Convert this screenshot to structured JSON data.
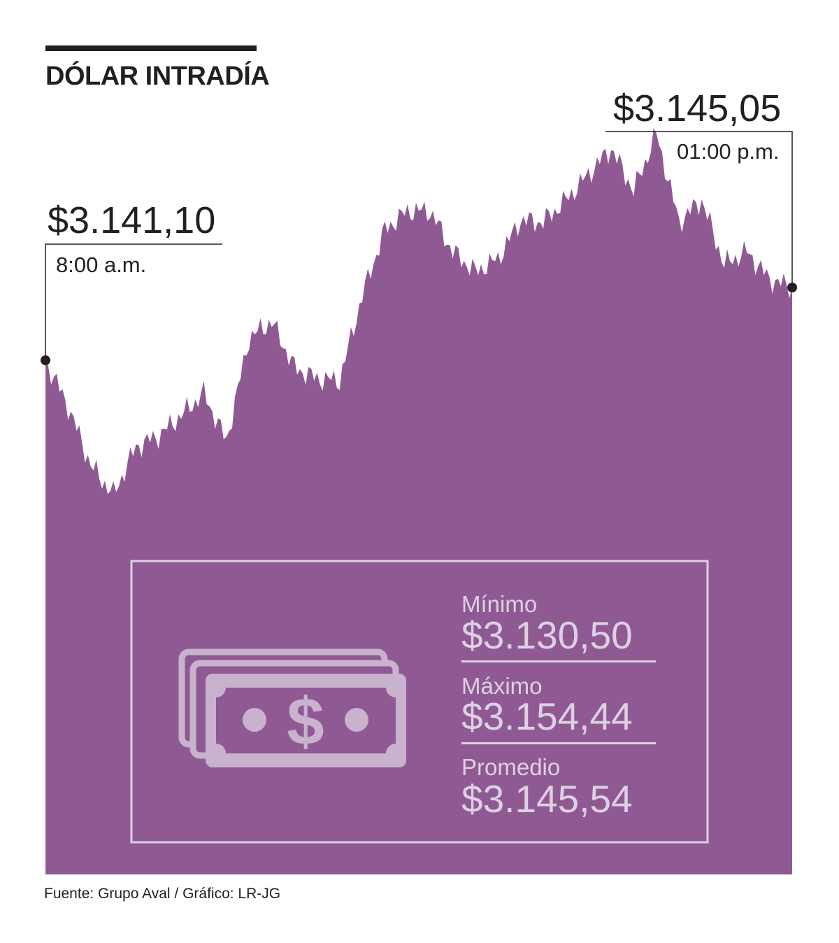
{
  "title": "DÓLAR INTRADÍA",
  "source": "Fuente: Grupo Aval / Gráfico: LR-JG",
  "colors": {
    "area": "#8f5a93",
    "text": "#231f20",
    "inset_text": "#ddd0e2"
  },
  "open": {
    "value": "$3.141,10",
    "time": "8:00 a.m."
  },
  "close": {
    "value": "$3.145,05",
    "time": "01:00 p.m."
  },
  "stats": [
    {
      "label": "Mínimo",
      "value": "$3.130,50"
    },
    {
      "label": "Máximo",
      "value": "$3.154,44"
    },
    {
      "label": "Promedio",
      "value": "$3.145,54"
    }
  ],
  "icon": "banknotes-dollar-icon",
  "chart_data": {
    "type": "area",
    "title": "DÓLAR INTRADÍA",
    "xlabel": "",
    "ylabel": "",
    "x_range": [
      "8:00 a.m.",
      "01:00 p.m."
    ],
    "ylim": [
      3130.5,
      3154.44
    ],
    "grid": false,
    "series": [
      {
        "x": [
          "8:00",
          "8:05",
          "8:10",
          "8:15",
          "8:20",
          "8:25",
          "8:30",
          "8:40",
          "8:50",
          "9:00",
          "9:10",
          "9:20",
          "9:30",
          "9:40",
          "9:50",
          "10:00",
          "10:10",
          "10:20",
          "10:30",
          "10:40",
          "10:50",
          "11:00",
          "11:10",
          "11:20",
          "11:30",
          "11:40",
          "11:50",
          "12:00",
          "12:10",
          "12:20",
          "12:30",
          "12:40",
          "12:50",
          "13:00"
        ],
        "values": [
          3141.1,
          3138.6,
          3135.4,
          3133.8,
          3136.4,
          3137.0,
          3138.1,
          3139.3,
          3136.7,
          3142.3,
          3143.2,
          3140.7,
          3140.1,
          3140.0,
          3144.6,
          3148.2,
          3149.2,
          3149.2,
          3147.0,
          3145.9,
          3146.6,
          3148.7,
          3148.6,
          3149.8,
          3151.2,
          3152.6,
          3150.3,
          3153.4,
          3148.6,
          3149.8,
          3146.3,
          3147.0,
          3145.5,
          3145.05
        ]
      }
    ]
  }
}
